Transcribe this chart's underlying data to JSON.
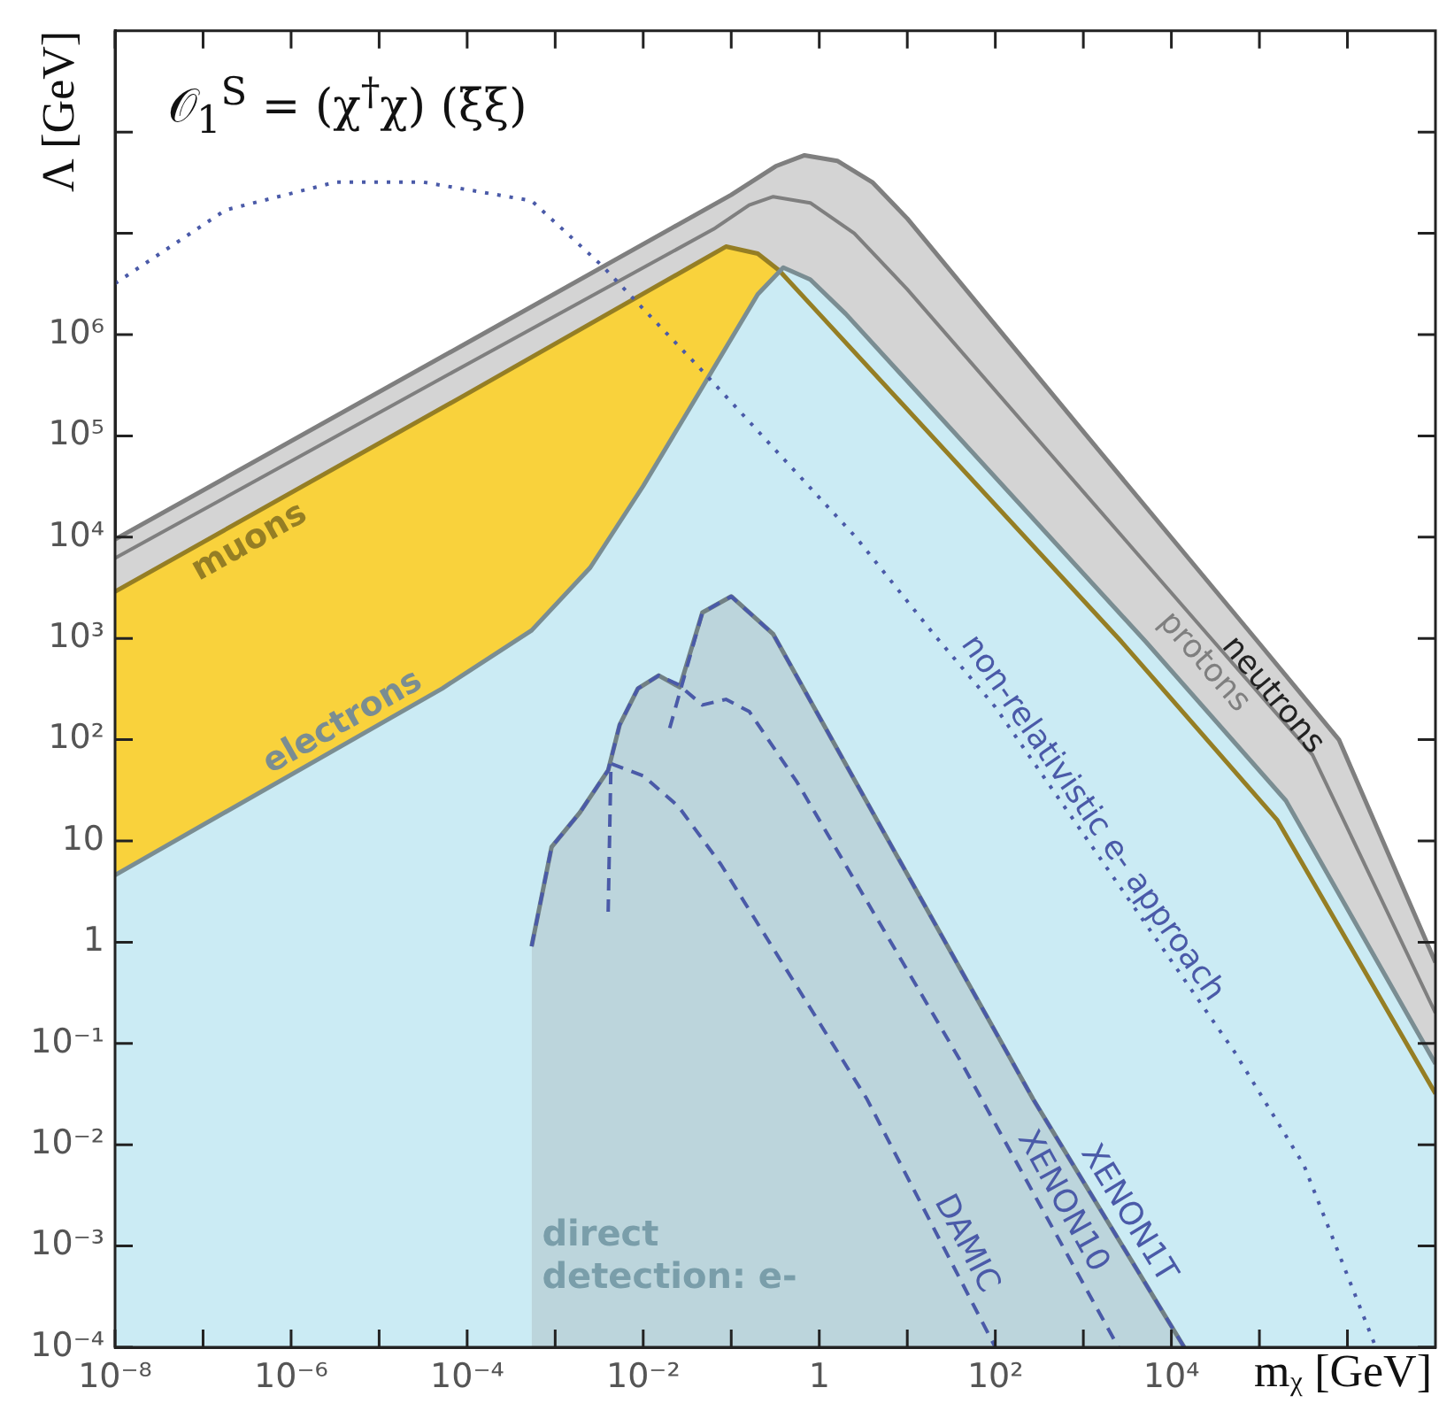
{
  "chart_data": {
    "type": "line",
    "title": "𝒪$_{1}$$^{S}$ = (χ$^{†}$χ) (ξ̄ξ)",
    "xlabel": "mᵪ [GeV]",
    "ylabel": "Λ [GeV]",
    "log": "xy",
    "grid": false,
    "legend": false,
    "marker": "none",
    "xlim": [
      1e-08,
      10000000.0
    ],
    "ylim": [
      0.0001,
      1000000000.0
    ],
    "xticks": [
      {
        "value": 1e-08,
        "label": "10⁻⁸"
      },
      {
        "value": 1e-07,
        "label": null
      },
      {
        "value": 1e-06,
        "label": "10⁻⁶"
      },
      {
        "value": 1e-05,
        "label": null
      },
      {
        "value": 0.0001,
        "label": "10⁻⁴"
      },
      {
        "value": 0.001,
        "label": null
      },
      {
        "value": 0.01,
        "label": "10⁻²"
      },
      {
        "value": 0.1,
        "label": null
      },
      1,
      {
        "value": 10,
        "label": null
      },
      {
        "value": 100,
        "label": "10²"
      },
      {
        "value": 1000.0,
        "label": null
      },
      {
        "value": 10000.0,
        "label": "10⁴"
      },
      {
        "value": 100000.0,
        "label": null
      },
      {
        "value": 1000000.0,
        "label": null
      }
    ],
    "yticks": [
      {
        "value": 0.0001,
        "label": "10⁻⁴"
      },
      {
        "value": 0.001,
        "label": "10⁻³"
      },
      {
        "value": 0.01,
        "label": "10⁻²"
      },
      {
        "value": 0.1,
        "label": "10⁻¹"
      },
      1,
      10,
      {
        "value": 100,
        "label": "10²"
      },
      {
        "value": 1000.0,
        "label": "10³"
      },
      {
        "value": 10000.0,
        "label": "10⁴"
      },
      {
        "value": 100000.0,
        "label": "10⁵"
      },
      {
        "value": 1000000.0,
        "label": "10⁶"
      },
      {
        "value": 10000000.0,
        "label": null
      },
      {
        "value": 100000000.0,
        "label": null
      }
    ],
    "series": [
      {
        "name": "neutrons",
        "type": "area",
        "color": "#d4d4d4",
        "x": [
          1e-08,
          0.0001,
          0.1,
          0.32,
          0.68,
          1.6,
          4,
          10,
          1000.0,
          100000.0,
          800000.0,
          10000000.0
        ],
        "values": [
          9500.0,
          830000.0,
          24000000.0,
          46000000.0,
          59000000.0,
          52000000.0,
          32000000.0,
          14000000.0,
          110000.0,
          890.0,
          100.0,
          0.63
        ]
      },
      {
        "name": "protons",
        "type": "line",
        "color": "#7f7f7f",
        "x": [
          1e-08,
          0.0001,
          0.063,
          0.16,
          0.3,
          0.79,
          2.5,
          10,
          1000.0,
          400000.0,
          10000000.0
        ],
        "values": [
          6200.0,
          510000.0,
          11000000.0,
          19000000.0,
          23000000.0,
          20000000.0,
          10000000.0,
          2800000.0,
          28000.0,
          71,
          0.2
        ]
      },
      {
        "name": "muons",
        "type": "area",
        "color": "#f9d23c",
        "x": [
          1e-08,
          0.0001,
          0.032,
          0.087,
          0.2,
          0.35,
          1,
          2700.0,
          160000.0,
          10000000.0
        ],
        "values": [
          2900.0,
          260000.0,
          4500000.0,
          7400000.0,
          6300000.0,
          4300000.0,
          1600000.0,
          930.0,
          16,
          0.032
        ]
      },
      {
        "name": "electrons",
        "type": "area",
        "color": "#cbebf4",
        "x": [
          1e-08,
          5.2e-05,
          0.00054,
          0.0025,
          0.01,
          0.055,
          0.2,
          0.39,
          0.79,
          2,
          5100.0,
          200000.0,
          10000000.0
        ],
        "values": [
          4.6,
          320.0,
          1200.0,
          5000.0,
          32000.0,
          380000.0,
          2500000.0,
          4600000.0,
          3500000.0,
          1600000.0,
          930.0,
          25,
          0.063
        ]
      },
      {
        "name": "direct detection: e-",
        "type": "area",
        "color": "#bcd5dc",
        "x": [
          0.00054,
          0.00091,
          0.0019,
          0.004,
          0.0054,
          0.0087,
          0.015,
          0.026,
          0.047,
          0.1,
          0.3,
          2.6,
          270,
          14000.0
        ],
        "values": [
          0.91,
          8.7,
          19,
          50,
          140,
          320,
          430,
          330,
          1800.0,
          2600.0,
          1100.0,
          38,
          0.028,
          0.0001
        ]
      },
      {
        "name": "DAMIC",
        "type": "line",
        "line_style": "dashed",
        "color": "#4a5aa8",
        "x": [
          0.004,
          0.0043,
          0.01,
          0.025,
          0.076,
          3.5,
          100
        ],
        "values": [
          2.0,
          58,
          44,
          22,
          5.9,
          0.028,
          0.0001
        ]
      },
      {
        "name": "XENON10",
        "type": "line",
        "line_style": "dashed",
        "color": "#4a5aa8",
        "x": [
          0.00054,
          0.00091,
          0.0019,
          0.004,
          0.0054,
          0.0087,
          0.015,
          0.025,
          0.047,
          0.087,
          0.16,
          0.56,
          42,
          2500.0
        ],
        "values": [
          0.91,
          8.7,
          19,
          50,
          140,
          320,
          430,
          350,
          220,
          250,
          190,
          38,
          0.063,
          0.0001
        ]
      },
      {
        "name": "XENON1T",
        "type": "line",
        "line_style": "dashed",
        "color": "#4a5aa8",
        "x": [
          0.02,
          0.047,
          0.1,
          0.3,
          2.6,
          270,
          14000.0
        ],
        "values": [
          130,
          1800.0,
          2600.0,
          1100.0,
          38,
          0.028,
          0.0001
        ]
      },
      {
        "name": "non-relativistic e- approach",
        "type": "line",
        "line_style": "dotted",
        "color": "#4a5aa8",
        "x": [
          1e-08,
          1.8e-07,
          3.2e-06,
          3.2e-05,
          0.00054,
          0.0034,
          0.048,
          2.6,
          20,
          100,
          52000.0,
          320000.0,
          2100000.0
        ],
        "values": [
          3200000.0,
          17000000.0,
          32000000.0,
          32000000.0,
          21000000.0,
          4800000.0,
          430000.0,
          10000.0,
          1100.0,
          210,
          0.083,
          0.0063,
          0.0001
        ]
      }
    ]
  }
}
